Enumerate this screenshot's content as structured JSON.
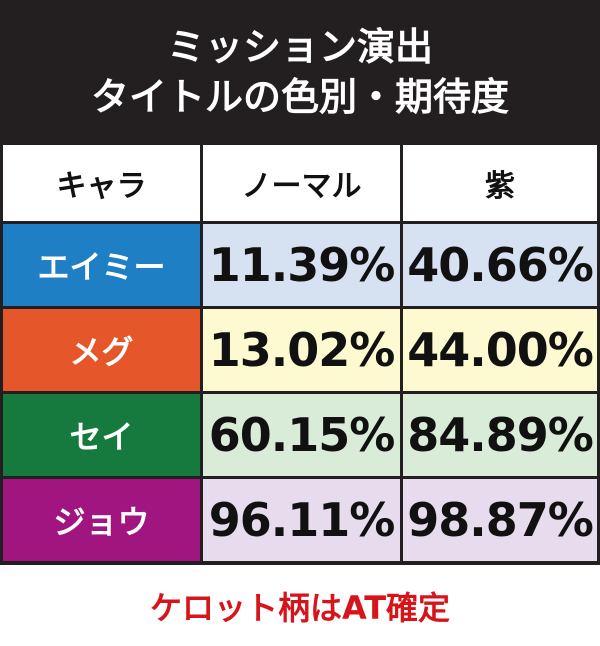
{
  "header": {
    "title": [
      "ミッション演出",
      "タイトルの色別・期待度"
    ]
  },
  "table": {
    "columns": [
      "キャラ",
      "ノーマル",
      "紫"
    ],
    "rows": [
      [
        "エイミー",
        "11.39%",
        "40.66%"
      ],
      [
        "メグ",
        "13.02%",
        "44.00%"
      ],
      [
        "セイ",
        "60.15%",
        "84.89%"
      ],
      [
        "ジョウ",
        "96.11%",
        "98.87%"
      ]
    ]
  },
  "footer": {
    "note": "ケロット柄はAT確定"
  }
}
